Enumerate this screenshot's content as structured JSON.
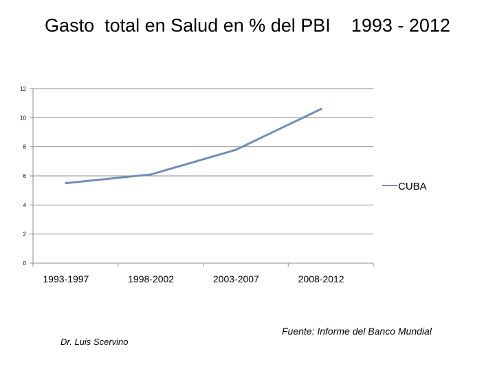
{
  "chart_data": {
    "type": "line",
    "title": "Gasto  total en Salud en % del PBI    1993 - 2012",
    "categories": [
      "1993-1997",
      "1998-2002",
      "2003-2007",
      "2008-2012"
    ],
    "series": [
      {
        "name": "CUBA",
        "values": [
          5.5,
          6.1,
          7.8,
          10.6
        ]
      }
    ],
    "ylim": [
      0,
      12
    ],
    "yticks": [
      0,
      2,
      4,
      6,
      8,
      10,
      12
    ],
    "grid": true,
    "legend": "right",
    "colors": {
      "line": "#6f8fb5",
      "grid": "#8c8c8c"
    }
  },
  "footer": {
    "author": "Dr. Luis Scervino",
    "source": "Fuente:  Informe del Banco Mundial"
  }
}
